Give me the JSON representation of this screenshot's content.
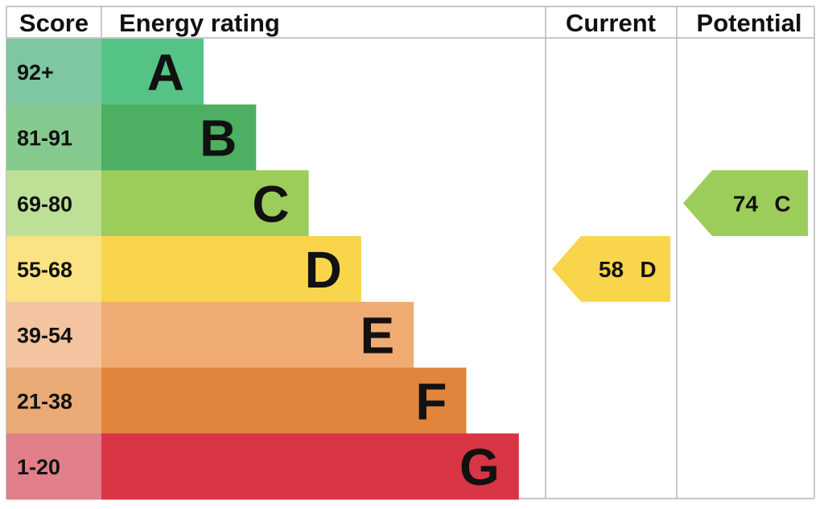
{
  "chart_data": {
    "type": "bar",
    "columns": {
      "score": "Score",
      "rating": "Energy rating",
      "current": "Current",
      "potential": "Potential"
    },
    "bands": [
      {
        "range": "92+",
        "letter": "A",
        "value": 1,
        "color": "#55c386",
        "light": "#7ec7a2"
      },
      {
        "range": "81-91",
        "letter": "B",
        "value": 2,
        "color": "#4caf62",
        "light": "#86c98e"
      },
      {
        "range": "69-80",
        "letter": "C",
        "value": 3,
        "color": "#9ccc5a",
        "light": "#bddf96"
      },
      {
        "range": "55-68",
        "letter": "D",
        "value": 4,
        "color": "#f8d54a",
        "light": "#fbe383"
      },
      {
        "range": "39-54",
        "letter": "E",
        "value": 5,
        "color": "#f0ab72",
        "light": "#f4c4a0"
      },
      {
        "range": "21-38",
        "letter": "F",
        "value": 6,
        "color": "#e0853b",
        "light": "#e9aa76"
      },
      {
        "range": "1-20",
        "letter": "G",
        "value": 7,
        "color": "#d83545",
        "light": "#e07f8a"
      }
    ],
    "current": {
      "score": "58",
      "letter": "D",
      "color": "#f8d54a"
    },
    "potential": {
      "score": "74",
      "letter": "C",
      "color": "#9ccc5a"
    }
  }
}
